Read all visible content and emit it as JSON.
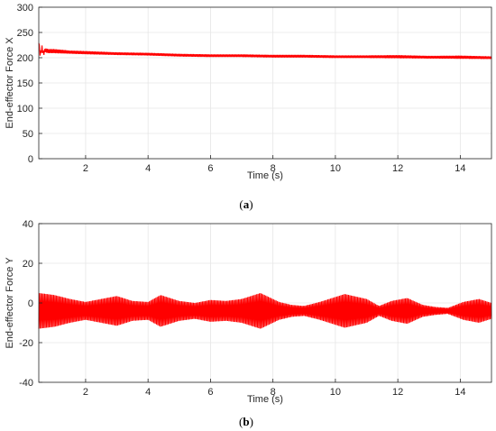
{
  "chart_data": [
    {
      "type": "line",
      "panel_label": "a",
      "xlabel": "Time (s)",
      "ylabel": "End-effector Force X",
      "xlim": [
        0.5,
        15
      ],
      "ylim": [
        0,
        300
      ],
      "x_ticks": [
        2,
        4,
        6,
        8,
        10,
        12,
        14
      ],
      "y_ticks": [
        0,
        50,
        100,
        150,
        200,
        250,
        300
      ],
      "grid": true,
      "series": [
        {
          "color": "#ff0000",
          "x": [
            0.5,
            0.55,
            0.6,
            0.65,
            0.7,
            0.8,
            1.0,
            1.5,
            2,
            3,
            4,
            5,
            6,
            7,
            8,
            9,
            10,
            11,
            12,
            13,
            14,
            15
          ],
          "y": [
            232,
            205,
            220,
            208,
            215,
            213,
            213,
            211,
            210,
            208,
            207,
            205,
            204,
            204,
            203,
            203,
            202,
            202,
            202,
            201,
            201,
            200
          ],
          "band": [
            3,
            6,
            5,
            5,
            4,
            4,
            4,
            3,
            3,
            2.5,
            2.5,
            2.5,
            2.5,
            2.5,
            2.5,
            2.5,
            2.5,
            2.5,
            3,
            2.5,
            3,
            2.5
          ]
        }
      ]
    },
    {
      "type": "line",
      "panel_label": "b",
      "xlabel": "Time (s)",
      "ylabel": "End-effector Force Y",
      "xlim": [
        0.5,
        15
      ],
      "ylim": [
        -40,
        40
      ],
      "x_ticks": [
        2,
        4,
        6,
        8,
        10,
        12,
        14
      ],
      "y_ticks": [
        -40,
        -20,
        0,
        20,
        40
      ],
      "grid": true,
      "series": [
        {
          "color": "#ff0000",
          "x": [
            0.5,
            1,
            1.5,
            2,
            2.5,
            3,
            3.5,
            4,
            4.4,
            5,
            5.5,
            6,
            6.5,
            7,
            7.6,
            8.2,
            8.6,
            9,
            9.5,
            10.3,
            11,
            11.4,
            11.8,
            12.3,
            12.8,
            13.2,
            13.6,
            14.1,
            14.6,
            15
          ],
          "center": [
            -4,
            -4,
            -4,
            -4,
            -4,
            -4,
            -4,
            -4,
            -4,
            -4,
            -4,
            -4,
            -4,
            -4,
            -4,
            -4,
            -4,
            -4,
            -4,
            -4,
            -4,
            -4,
            -4,
            -4,
            -4,
            -4,
            -4,
            -4,
            -4,
            -4
          ],
          "amplitude": [
            9,
            8,
            6,
            4.5,
            6,
            7.5,
            5,
            4.5,
            8,
            5,
            4,
            5.5,
            5,
            6,
            9,
            4.5,
            3,
            2.5,
            4.5,
            8.5,
            6,
            2.5,
            5,
            6.5,
            3,
            2,
            1.5,
            4.5,
            6,
            4
          ]
        }
      ]
    }
  ]
}
